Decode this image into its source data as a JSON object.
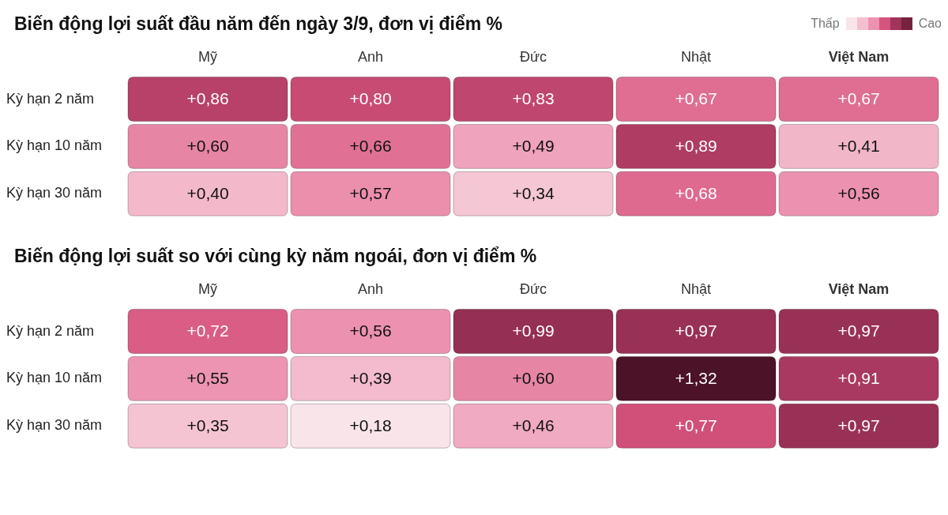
{
  "chart_data": [
    {
      "type": "heatmap",
      "title": "Biến động lợi suất đầu năm đến ngày 3/9, đơn vị điểm %",
      "categories": [
        "Mỹ",
        "Anh",
        "Đức",
        "Nhật",
        "Việt Nam"
      ],
      "y_categories": [
        "Kỳ hạn 2 năm",
        "Kỳ hạn 10 năm",
        "Kỳ hạn 30 năm"
      ],
      "cells": [
        [
          0.86,
          0.8,
          0.83,
          0.67,
          0.67
        ],
        [
          0.6,
          0.66,
          0.49,
          0.89,
          0.41
        ],
        [
          0.4,
          0.57,
          0.34,
          0.68,
          0.56
        ]
      ],
      "cell_labels": [
        [
          "+0,86",
          "+0,80",
          "+0,83",
          "+0,67",
          "+0,67"
        ],
        [
          "+0,60",
          "+0,66",
          "+0,49",
          "+0,89",
          "+0,41"
        ],
        [
          "+0,40",
          "+0,57",
          "+0,34",
          "+0,68",
          "+0,56"
        ]
      ],
      "annotations": [
        "Thấp",
        "Cao"
      ]
    },
    {
      "type": "heatmap",
      "title": "Biến động lợi suất so với cùng kỳ năm ngoái, đơn vị điểm %",
      "categories": [
        "Mỹ",
        "Anh",
        "Đức",
        "Nhật",
        "Việt Nam"
      ],
      "y_categories": [
        "Kỳ hạn 2 năm",
        "Kỳ hạn 10 năm",
        "Kỳ hạn 30 năm"
      ],
      "cells": [
        [
          0.72,
          0.56,
          0.99,
          0.97,
          0.97
        ],
        [
          0.55,
          0.39,
          0.6,
          1.32,
          0.91
        ],
        [
          0.35,
          0.18,
          0.46,
          0.77,
          0.97
        ]
      ],
      "cell_labels": [
        [
          "+0,72",
          "+0,56",
          "+0,99",
          "+0,97",
          "+0,97"
        ],
        [
          "+0,55",
          "+0,39",
          "+0,60",
          "+1,32",
          "+0,91"
        ],
        [
          "+0,35",
          "+0,18",
          "+0,46",
          "+0,77",
          "+0,97"
        ]
      ]
    }
  ]
}
